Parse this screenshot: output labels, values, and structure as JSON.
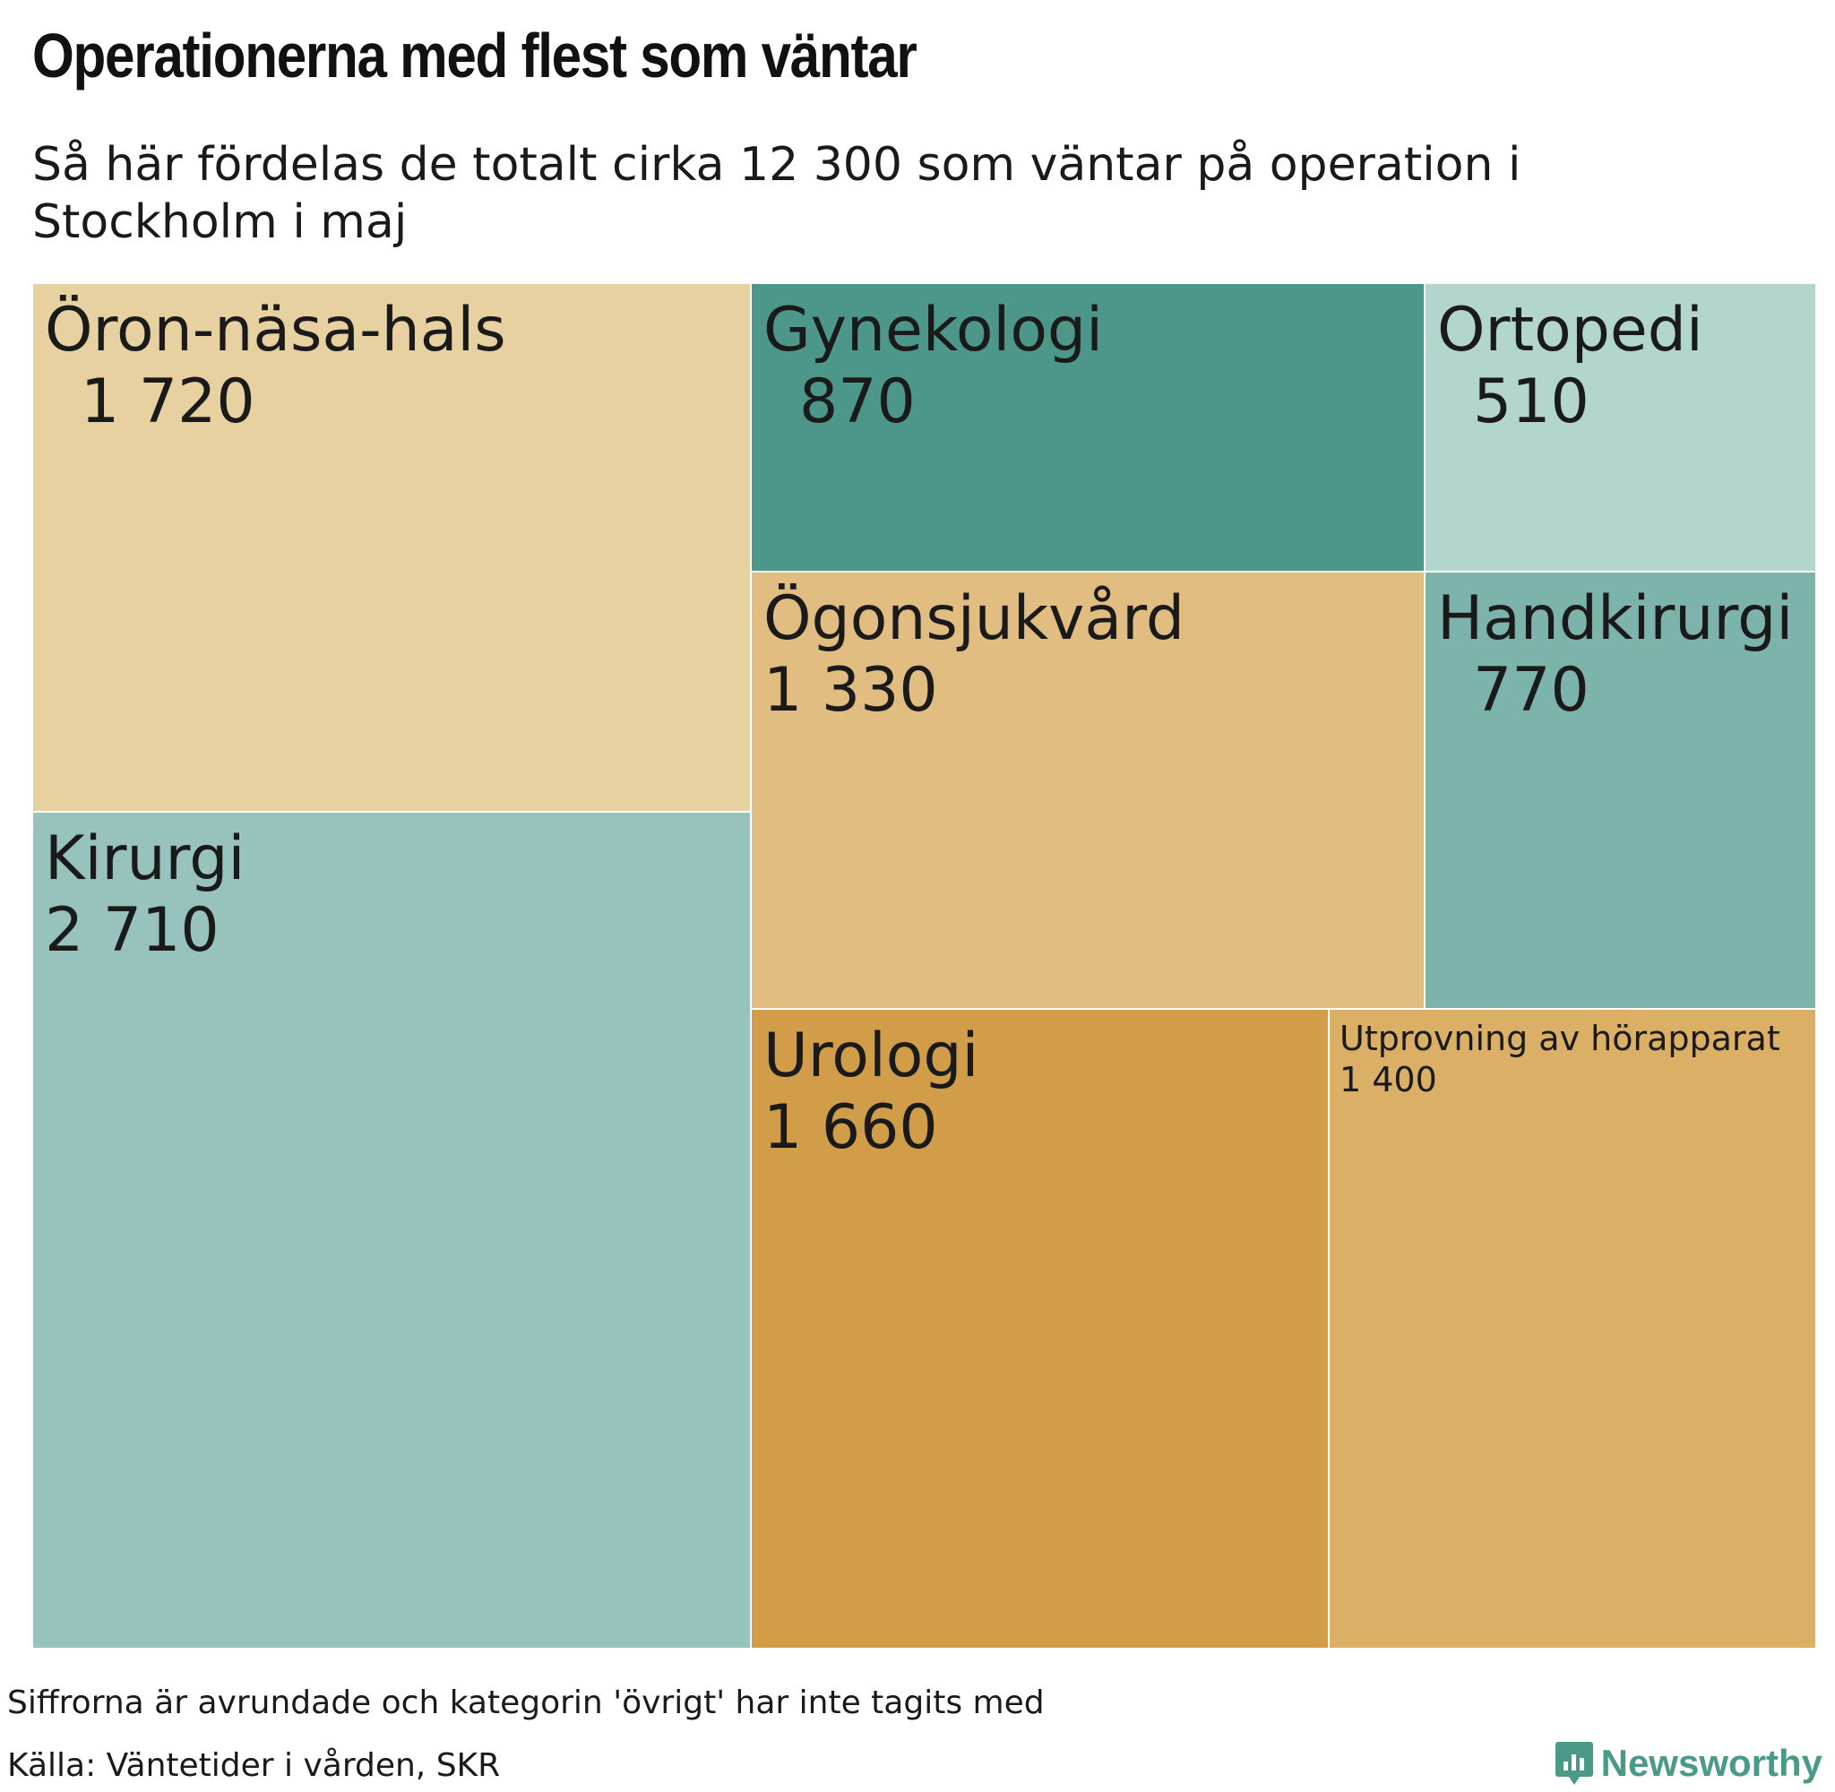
{
  "title": "Operationerna med flest som väntar",
  "subtitle": "Så här fördelas de totalt cirka 12 300 som väntar på operation i Stockholm i maj",
  "chart_data": {
    "type": "treemap",
    "nodes": [
      {
        "name": "Öron-näsa-hals",
        "value_label": "1 720",
        "value": 1720,
        "color": "#e8d1a1"
      },
      {
        "name": "Kirurgi",
        "value_label": "2 710",
        "value": 2710,
        "color": "#98c3bd"
      },
      {
        "name": "Gynekologi",
        "value_label": "870",
        "value": 870,
        "color": "#4c968a"
      },
      {
        "name": "Ortopedi",
        "value_label": "510",
        "value": 510,
        "color": "#b2d6ce"
      },
      {
        "name": "Ögonsjukvård",
        "value_label": "1 330",
        "value": 1330,
        "color": "#e2bd81"
      },
      {
        "name": "Handkirurgi",
        "value_label": "770",
        "value": 770,
        "color": "#7cb4ab"
      },
      {
        "name": "Urologi",
        "value_label": "1 660",
        "value": 1660,
        "color": "#d19d48"
      },
      {
        "name": "Utprovning av hörapparat",
        "value_label": "1 400",
        "value": 1400,
        "color": "#dbb066"
      }
    ]
  },
  "note": "Siffrorna är avrundade och kategorin 'övrigt' har inte tagits med",
  "source": "Källa: Väntetider i vården, SKR",
  "brand": {
    "name": "Newsworthy",
    "color": "#4a9a8a"
  }
}
